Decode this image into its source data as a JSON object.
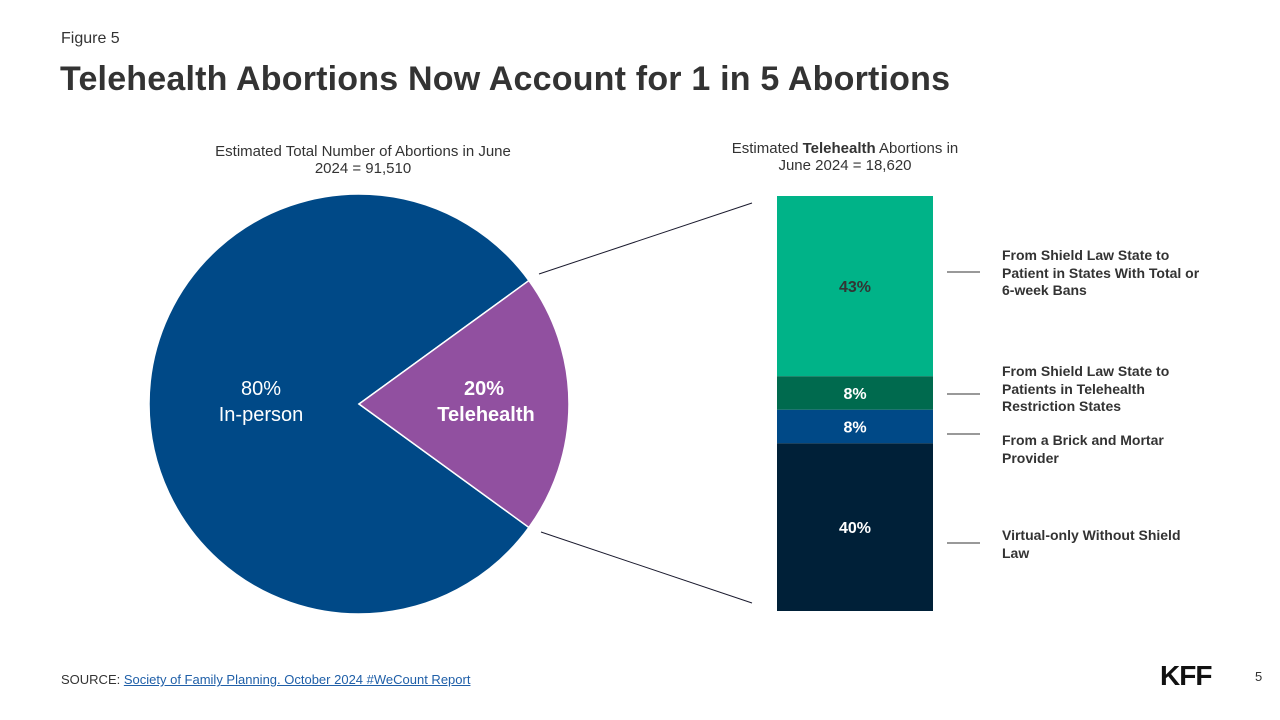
{
  "figure_label": "Figure 5",
  "title": "Telehealth Abortions Now Account for 1 in 5 Abortions",
  "left_subtitle": "Estimated Total Number of Abortions in June 2024 = 91,510",
  "right_subtitle": {
    "prefix": "Estimated ",
    "bold": "Telehealth",
    "suffix": " Abortions in",
    "line2": "June 2024 = 18,620"
  },
  "colors": {
    "in_person": "#004987",
    "telehealth": "#9150a0",
    "shield_ban": "#00b388",
    "shield_restriction": "#006a4e",
    "brick_mortar": "#004987",
    "virtual_no_shield": "#002038",
    "connector": "#1a1a2e"
  },
  "chart_data": [
    {
      "type": "pie",
      "title": "Estimated Total Number of Abortions in June 2024 = 91,510",
      "slices": [
        {
          "pct_label": "80%",
          "name": "In-person",
          "value": 80,
          "color_key": "in_person"
        },
        {
          "pct_label": "20%",
          "name": "Telehealth",
          "value": 20,
          "color_key": "telehealth"
        }
      ]
    },
    {
      "type": "bar",
      "stacked": true,
      "title": "Estimated Telehealth Abortions in June 2024 = 18,620",
      "segments": [
        {
          "label": "43%",
          "value": 43,
          "legend": "From Shield Law State to Patient in States With Total or 6-week Bans",
          "color_key": "shield_ban"
        },
        {
          "label": "8%",
          "value": 8,
          "legend": "From Shield Law State to Patients in Telehealth Restriction States",
          "color_key": "shield_restriction"
        },
        {
          "label": "8%",
          "value": 8,
          "legend": "From a Brick and Mortar Provider",
          "color_key": "brick_mortar"
        },
        {
          "label": "40%",
          "value": 40,
          "legend": "Virtual-only Without Shield Law",
          "color_key": "virtual_no_shield"
        }
      ]
    }
  ],
  "source": {
    "prefix": "SOURCE: ",
    "link_text": "Society of Family Planning. October 2024 #WeCount Report"
  },
  "logo": "KFF",
  "page_number": "5"
}
